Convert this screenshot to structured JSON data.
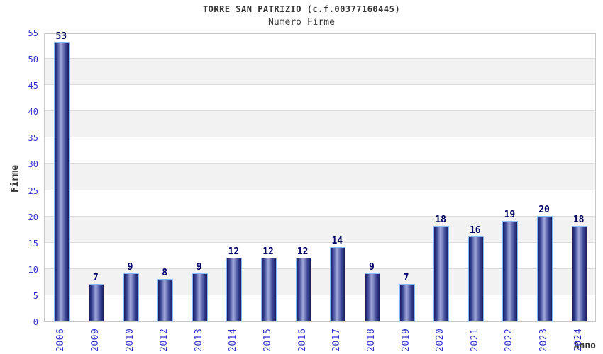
{
  "header": {
    "title": "TORRE SAN PATRIZIO (c.f.00377160445)",
    "subtitle": "Numero Firme"
  },
  "chart_data": {
    "type": "bar",
    "title": "TORRE SAN PATRIZIO (c.f.00377160445)",
    "subtitle": "Numero Firme",
    "categories": [
      "2006",
      "2009",
      "2010",
      "2012",
      "2013",
      "2014",
      "2015",
      "2016",
      "2017",
      "2018",
      "2019",
      "2020",
      "2021",
      "2022",
      "2023",
      "2024"
    ],
    "values": [
      53,
      7,
      9,
      8,
      9,
      12,
      12,
      12,
      14,
      9,
      7,
      18,
      16,
      19,
      20,
      18
    ],
    "xlabel": "Anno",
    "ylabel": "Firme",
    "ylim": [
      0,
      55
    ],
    "ytick_step": 5,
    "grid": true,
    "legend": "none",
    "colors": {
      "bar_edge": "#171d62",
      "bar_center": "#a2aadc",
      "bar_border": "#8ab9f2",
      "tick_label": "#3333cc",
      "value_label": "#000066",
      "gridline": "#dcdcdc",
      "band_gray": "#f2f2f2",
      "band_white": "#ffffff",
      "plot_border": "#c8c8c8",
      "title_text": "#333333"
    }
  }
}
